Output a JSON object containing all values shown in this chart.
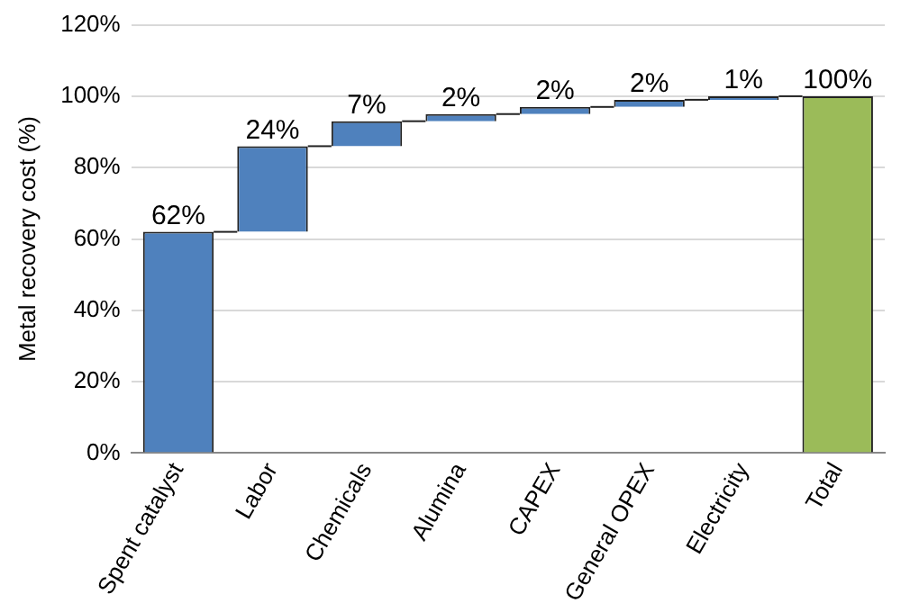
{
  "chart_data": {
    "type": "bar",
    "ylabel": "Metal recovery cost (%)",
    "categories": [
      "Spent catalyst",
      "Labor",
      "Chemicals",
      "Alumina",
      "CAPEX",
      "General OPEX",
      "Electricity",
      "Total"
    ],
    "values": [
      62,
      24,
      7,
      2,
      2,
      2,
      1,
      100
    ],
    "base": [
      0,
      62,
      86,
      93,
      95,
      97,
      99,
      0
    ],
    "colors": [
      "#4f81bd",
      "#4f81bd",
      "#4f81bd",
      "#4f81bd",
      "#4f81bd",
      "#4f81bd",
      "#4f81bd",
      "#9bbb59"
    ],
    "value_labels": [
      "62%",
      "24%",
      "7%",
      "2%",
      "2%",
      "2%",
      "1%",
      "100%"
    ],
    "ylim": [
      0,
      120
    ],
    "yticks": [
      {
        "value": 0,
        "label": "0%"
      },
      {
        "value": 20,
        "label": "20%"
      },
      {
        "value": 40,
        "label": "40%"
      },
      {
        "value": 60,
        "label": "60%"
      },
      {
        "value": 80,
        "label": "80%"
      },
      {
        "value": 100,
        "label": "100%"
      },
      {
        "value": 120,
        "label": "120%"
      }
    ],
    "grid": "y",
    "legend": false
  }
}
